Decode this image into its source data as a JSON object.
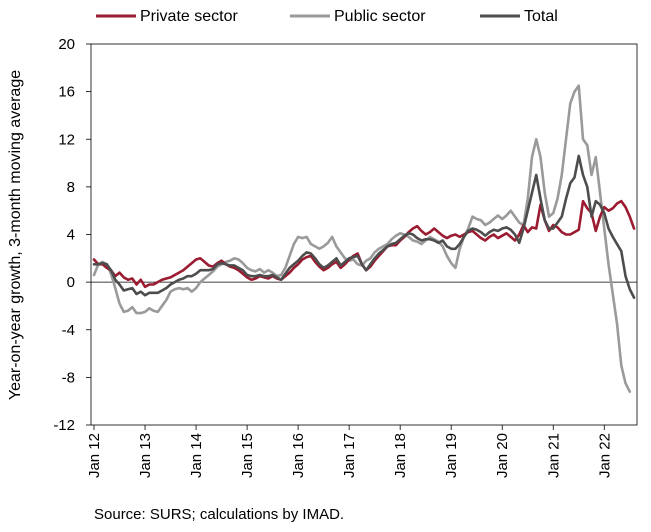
{
  "chart_data": {
    "type": "line",
    "title": "",
    "xlabel": "",
    "ylabel": "Year-on-year growth, 3-month moving average",
    "ylim": [
      -12,
      20
    ],
    "yticks": [
      -12,
      -8,
      -4,
      0,
      4,
      8,
      12,
      16,
      20
    ],
    "xtick_labels": [
      "Jan 12",
      "Jan 13",
      "Jan 14",
      "Jan 15",
      "Jan 16",
      "Jan 17",
      "Jan 18",
      "Jan 19",
      "Jan 20",
      "Jan 21",
      "Jan 22"
    ],
    "x_start": "Jan 12",
    "x_end": "Apr 22",
    "frequency": "monthly",
    "grid": false,
    "legend_position": "top",
    "source": "Source: SURS; calculations by IMAD.",
    "series": [
      {
        "name": "Private sector",
        "color": "#9b1b30",
        "values": [
          1.9,
          1.5,
          1.5,
          1.2,
          1.0,
          0.5,
          0.8,
          0.4,
          0.2,
          0.3,
          -0.2,
          0.2,
          -0.4,
          -0.2,
          -0.2,
          0.0,
          0.2,
          0.3,
          0.4,
          0.6,
          0.8,
          1.0,
          1.3,
          1.6,
          1.9,
          2.0,
          1.7,
          1.4,
          1.3,
          1.6,
          1.8,
          1.5,
          1.3,
          1.2,
          1.0,
          0.7,
          0.4,
          0.2,
          0.3,
          0.5,
          0.4,
          0.3,
          0.5,
          0.3,
          0.2,
          0.5,
          0.8,
          1.2,
          1.5,
          1.9,
          2.1,
          2.2,
          1.7,
          1.3,
          1.0,
          1.2,
          1.5,
          1.7,
          1.2,
          1.5,
          1.9,
          2.2,
          2.4,
          1.5,
          1.0,
          1.3,
          1.8,
          2.2,
          2.6,
          3.0,
          3.1,
          3.1,
          3.5,
          3.8,
          4.2,
          4.5,
          4.7,
          4.3,
          4.0,
          4.2,
          4.5,
          4.2,
          3.9,
          3.7,
          3.9,
          4.0,
          3.8,
          4.0,
          4.2,
          4.3,
          4.0,
          3.7,
          3.5,
          3.8,
          4.0,
          3.7,
          3.9,
          4.1,
          3.8,
          3.5,
          4.0,
          4.8,
          4.2,
          4.6,
          4.5,
          6.5,
          5.2,
          4.3,
          4.8,
          4.6,
          4.2,
          4.0,
          4.0,
          4.2,
          4.4,
          6.8,
          6.2,
          5.8,
          4.3,
          5.5,
          6.3,
          6.0,
          6.2,
          6.6,
          6.8,
          6.3,
          5.5,
          4.5
        ]
      },
      {
        "name": "Public sector",
        "color": "#9a9a9a",
        "values": [
          0.6,
          1.5,
          1.7,
          1.5,
          0.7,
          -0.5,
          -1.8,
          -2.5,
          -2.4,
          -2.1,
          -2.6,
          -2.6,
          -2.5,
          -2.2,
          -2.4,
          -2.5,
          -2.0,
          -1.5,
          -0.8,
          -0.6,
          -0.5,
          -0.6,
          -0.5,
          -0.8,
          -0.5,
          0.0,
          0.3,
          0.6,
          0.9,
          1.3,
          1.5,
          1.7,
          1.8,
          2.0,
          1.9,
          1.6,
          1.2,
          1.0,
          0.9,
          1.1,
          0.8,
          1.0,
          0.8,
          0.5,
          0.6,
          1.2,
          2.2,
          3.2,
          3.8,
          3.7,
          3.8,
          3.2,
          3.0,
          2.8,
          3.0,
          3.3,
          3.8,
          3.0,
          2.5,
          2.0,
          1.8,
          1.9,
          1.5,
          1.4,
          1.8,
          2.0,
          2.5,
          2.8,
          3.0,
          3.2,
          3.6,
          3.9,
          4.1,
          4.0,
          3.8,
          3.5,
          3.4,
          3.2,
          3.5,
          3.8,
          3.6,
          3.4,
          3.0,
          2.2,
          1.6,
          1.2,
          2.8,
          3.8,
          4.5,
          5.5,
          5.3,
          5.2,
          4.8,
          5.0,
          5.3,
          5.6,
          5.3,
          5.6,
          6.0,
          5.5,
          5.0,
          4.8,
          7.0,
          10.5,
          12.0,
          10.5,
          7.5,
          5.5,
          5.8,
          7.0,
          9.0,
          12.0,
          15.0,
          16.0,
          16.5,
          12.0,
          11.5,
          9.0,
          10.5,
          7.5,
          4.5,
          1.5,
          -1.0,
          -3.5,
          -7.0,
          -8.5,
          -9.2
        ]
      },
      {
        "name": "Total",
        "color": "#4d4d4d",
        "values": [
          1.5,
          1.5,
          1.6,
          1.5,
          1.0,
          0.2,
          -0.2,
          -0.7,
          -0.6,
          -0.5,
          -1.0,
          -0.8,
          -1.1,
          -0.9,
          -0.9,
          -0.9,
          -0.7,
          -0.5,
          -0.2,
          0.0,
          0.2,
          0.3,
          0.5,
          0.5,
          0.7,
          1.0,
          1.0,
          1.0,
          1.1,
          1.5,
          1.6,
          1.5,
          1.4,
          1.4,
          1.2,
          1.0,
          0.6,
          0.5,
          0.5,
          0.6,
          0.5,
          0.5,
          0.6,
          0.4,
          0.2,
          0.7,
          1.2,
          1.5,
          1.8,
          2.2,
          2.5,
          2.4,
          2.0,
          1.5,
          1.2,
          1.4,
          1.7,
          2.0,
          1.4,
          1.7,
          2.0,
          2.1,
          2.2,
          1.5,
          1.0,
          1.5,
          2.0,
          2.4,
          2.7,
          3.0,
          3.2,
          3.3,
          3.6,
          3.9,
          4.1,
          4.0,
          3.7,
          3.5,
          3.6,
          3.6,
          3.5,
          3.3,
          3.5,
          3.0,
          2.8,
          2.8,
          3.2,
          3.8,
          4.3,
          4.5,
          4.4,
          4.2,
          3.9,
          4.2,
          4.4,
          4.3,
          4.5,
          4.6,
          4.4,
          4.0,
          3.3,
          4.5,
          6.0,
          7.5,
          9.0,
          7.0,
          5.2,
          4.5,
          4.5,
          5.0,
          5.5,
          7.0,
          8.3,
          8.8,
          10.6,
          9.0,
          8.0,
          5.5,
          6.8,
          6.5,
          5.8,
          4.5,
          3.8,
          3.2,
          2.6,
          0.5,
          -0.6,
          -1.3
        ]
      }
    ]
  }
}
